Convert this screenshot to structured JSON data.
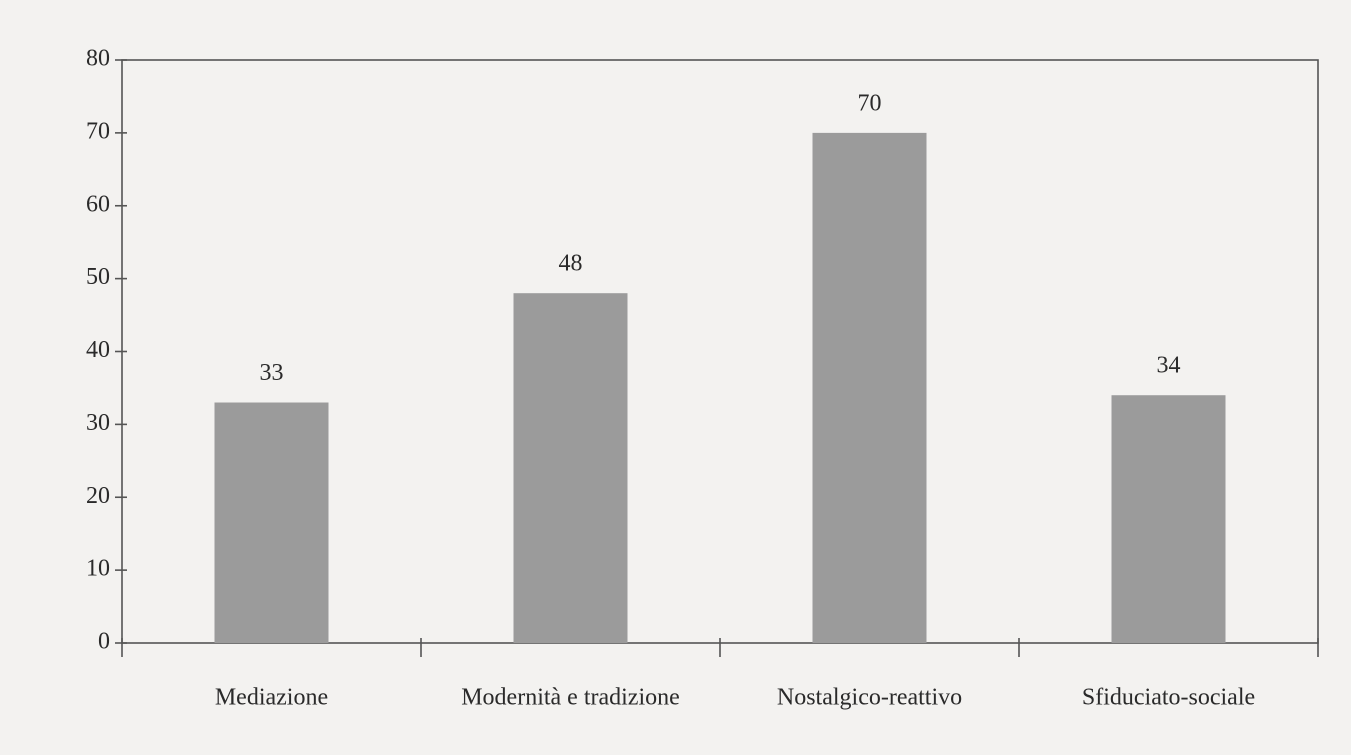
{
  "chart_data": {
    "type": "bar",
    "categories": [
      "Mediazione",
      "Modernità e tradizione",
      "Nostalgico-reattivo",
      "Sfiduciato-sociale"
    ],
    "values": [
      33,
      48,
      70,
      34
    ],
    "color": "#9b9b9b",
    "ylim": [
      0,
      80
    ],
    "yticks": [
      0,
      10,
      20,
      30,
      40,
      50,
      60,
      70,
      80
    ]
  }
}
